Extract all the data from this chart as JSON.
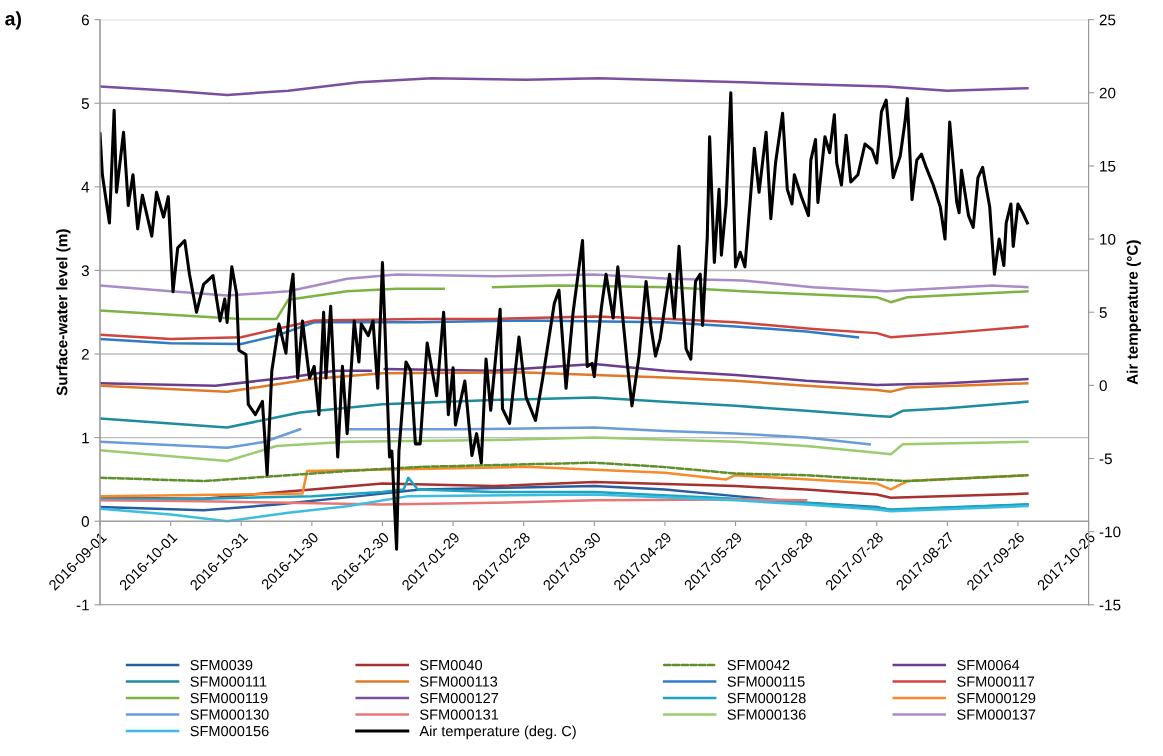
{
  "chart_data": {
    "type": "line",
    "title": "a)",
    "ylabel": "Surface-water level (m)",
    "y2label": "Air temperature (°C)",
    "xlim": [
      "2016-09-01",
      "2017-10-26"
    ],
    "xticks": [
      "2016-09-01",
      "2016-10-01",
      "2016-10-31",
      "2016-11-30",
      "2016-12-30",
      "2017-01-29",
      "2017-02-28",
      "2017-03-30",
      "2017-04-29",
      "2017-05-29",
      "2017-06-28",
      "2017-07-28",
      "2017-08-27",
      "2017-09-26",
      "2017-10-26"
    ],
    "ylim": [
      -1,
      6
    ],
    "yticks": [
      -1,
      0,
      1,
      2,
      3,
      4,
      5,
      6
    ],
    "y2lim": [
      -15,
      25
    ],
    "y2ticks": [
      -15,
      -10,
      -5,
      0,
      5,
      10,
      15,
      20,
      25
    ],
    "grid": "y",
    "legend": "bottom",
    "series": [
      {
        "name": "SFM0039",
        "color": "#2a5d9f",
        "x": [
          "2016-09-01",
          "2016-10-15",
          "2016-11-15",
          "2016-12-20",
          "2017-01-15",
          "2017-03-30",
          "2017-04-29",
          "2017-05-29",
          "2017-06-28",
          "2017-07-28",
          "2017-08-03",
          "2017-09-30"
        ],
        "values": [
          0.17,
          0.13,
          0.2,
          0.3,
          0.38,
          0.42,
          0.38,
          0.3,
          0.22,
          0.17,
          0.13,
          0.2
        ]
      },
      {
        "name": "SFM0040",
        "color": "#a8302f",
        "x": [
          "2016-09-01",
          "2016-10-15",
          "2016-11-30",
          "2016-12-30",
          "2017-02-15",
          "2017-03-30",
          "2017-05-29",
          "2017-06-28",
          "2017-07-28",
          "2017-08-03",
          "2017-09-30"
        ],
        "values": [
          0.28,
          0.27,
          0.38,
          0.45,
          0.42,
          0.47,
          0.42,
          0.38,
          0.32,
          0.28,
          0.33
        ]
      },
      {
        "name": "SFM0042",
        "color": "#5e8f2a",
        "line_style": "dashed",
        "x": [
          "2016-09-01",
          "2016-10-15",
          "2016-11-20",
          "2016-12-15",
          "2017-01-15",
          "2017-02-28",
          "2017-03-30",
          "2017-04-28",
          "2017-05-29",
          "2017-06-28",
          "2017-07-28",
          "2017-08-10",
          "2017-09-30"
        ],
        "values": [
          0.52,
          0.48,
          0.55,
          0.6,
          0.65,
          0.68,
          0.7,
          0.65,
          0.57,
          0.55,
          0.5,
          0.48,
          0.55
        ]
      },
      {
        "name": "SFM0064",
        "color": "#6a3d8f",
        "x": [
          "2016-09-01",
          "2016-10-20",
          "2016-11-20",
          "2016-12-10",
          "2016-12-25",
          "2016-12-28",
          "2016-12-31",
          "2017-02-15",
          "2017-03-30",
          "2017-04-29",
          "2017-05-29",
          "2017-06-28",
          "2017-07-28",
          "2017-08-27",
          "2017-09-30"
        ],
        "values": [
          1.65,
          1.62,
          1.72,
          1.8,
          1.8,
          null,
          1.82,
          1.8,
          1.88,
          1.8,
          1.75,
          1.68,
          1.63,
          1.65,
          1.7
        ]
      },
      {
        "name": "SFM000111",
        "color": "#1c8c9e",
        "x": [
          "2016-09-01",
          "2016-10-25",
          "2016-11-25",
          "2016-12-30",
          "2017-02-15",
          "2017-03-30",
          "2017-04-29",
          "2017-05-29",
          "2017-06-28",
          "2017-07-28",
          "2017-08-03",
          "2017-08-08",
          "2017-08-27",
          "2017-09-30"
        ],
        "values": [
          1.23,
          1.12,
          1.3,
          1.4,
          1.45,
          1.48,
          1.43,
          1.38,
          1.32,
          1.26,
          1.25,
          1.32,
          1.35,
          1.43
        ]
      },
      {
        "name": "SFM000113",
        "color": "#e07a28",
        "x": [
          "2016-09-01",
          "2016-10-25",
          "2016-11-30",
          "2016-12-30",
          "2017-03-01",
          "2017-04-29",
          "2017-05-29",
          "2017-06-28",
          "2017-07-28",
          "2017-08-03",
          "2017-08-10",
          "2017-09-30"
        ],
        "values": [
          1.62,
          1.55,
          1.7,
          1.77,
          1.78,
          1.72,
          1.68,
          1.62,
          1.57,
          1.55,
          1.6,
          1.65
        ]
      },
      {
        "name": "SFM000115",
        "color": "#2f7cc4",
        "x": [
          "2016-09-01",
          "2016-10-01",
          "2016-10-31",
          "2016-11-15",
          "2016-12-01",
          "2017-01-15",
          "2017-03-01",
          "2017-04-29",
          "2017-05-29",
          "2017-06-28",
          "2017-07-20"
        ],
        "values": [
          2.18,
          2.13,
          2.12,
          2.22,
          2.38,
          2.38,
          2.4,
          2.38,
          2.33,
          2.27,
          2.2
        ]
      },
      {
        "name": "SFM000117",
        "color": "#d0443e",
        "x": [
          "2016-09-01",
          "2016-10-01",
          "2016-10-31",
          "2016-11-15",
          "2016-12-01",
          "2017-01-15",
          "2017-02-15",
          "2017-03-30",
          "2017-05-01",
          "2017-05-29",
          "2017-07-01",
          "2017-07-28",
          "2017-08-03",
          "2017-08-27",
          "2017-09-30"
        ],
        "values": [
          2.23,
          2.18,
          2.2,
          2.3,
          2.4,
          2.42,
          2.42,
          2.45,
          2.42,
          2.38,
          2.3,
          2.25,
          2.2,
          2.25,
          2.33
        ]
      },
      {
        "name": "SFM000119",
        "color": "#7cb342",
        "x": [
          "2016-09-01",
          "2016-10-01",
          "2016-10-31",
          "2016-11-15",
          "2016-11-20",
          "2016-12-15",
          "2017-01-05",
          "2017-01-25",
          "2017-02-01",
          "2017-02-15",
          "2017-03-15",
          "2017-05-01",
          "2017-06-01",
          "2017-07-28",
          "2017-08-03",
          "2017-08-10",
          "2017-09-30"
        ],
        "values": [
          2.52,
          2.47,
          2.42,
          2.42,
          2.65,
          2.75,
          2.78,
          2.78,
          null,
          2.8,
          2.82,
          2.8,
          2.75,
          2.68,
          2.62,
          2.68,
          2.75
        ]
      },
      {
        "name": "SFM000127",
        "color": "#7b4fa0",
        "x": [
          "2016-09-01",
          "2016-10-01",
          "2016-10-25",
          "2016-11-20",
          "2016-12-20",
          "2017-01-20",
          "2017-03-01",
          "2017-04-01",
          "2017-06-01",
          "2017-08-01",
          "2017-08-27",
          "2017-09-30"
        ],
        "values": [
          5.2,
          5.15,
          5.1,
          5.15,
          5.25,
          5.3,
          5.28,
          5.3,
          5.25,
          5.2,
          5.15,
          5.18
        ]
      },
      {
        "name": "SFM000128",
        "color": "#1aa3c3",
        "x": [
          "2016-09-01",
          "2016-10-15",
          "2016-11-30",
          "2016-12-30",
          "2017-01-08",
          "2017-01-10",
          "2017-01-14",
          "2017-02-15",
          "2017-03-30",
          "2017-05-29",
          "2017-06-28",
          "2017-07-28",
          "2017-08-03",
          "2017-09-30"
        ],
        "values": [
          0.27,
          0.27,
          0.3,
          0.35,
          0.38,
          0.52,
          0.38,
          0.35,
          0.35,
          0.27,
          0.22,
          0.16,
          0.14,
          0.2
        ]
      },
      {
        "name": "SFM000129",
        "color": "#f58b2b",
        "x": [
          "2016-09-01",
          "2016-11-26",
          "2016-11-28",
          "2017-01-01",
          "2017-03-01",
          "2017-04-29",
          "2017-05-25",
          "2017-05-29",
          "2017-07-28",
          "2017-08-03",
          "2017-08-10",
          "2017-09-30"
        ],
        "values": [
          0.3,
          0.33,
          0.6,
          0.62,
          0.65,
          0.58,
          0.5,
          0.55,
          0.45,
          0.38,
          0.48,
          0.55
        ]
      },
      {
        "name": "SFM000130",
        "color": "#6b9bd8",
        "x": [
          "2016-09-01",
          "2016-10-25",
          "2016-11-10",
          "2016-11-25",
          "2016-11-27",
          "2016-12-15",
          "2017-02-01",
          "2017-03-30",
          "2017-04-29",
          "2017-05-29",
          "2017-06-28",
          "2017-07-25"
        ],
        "values": [
          0.95,
          0.88,
          0.95,
          1.1,
          null,
          1.1,
          1.1,
          1.12,
          1.08,
          1.05,
          1.0,
          0.92
        ]
      },
      {
        "name": "SFM000131",
        "color": "#e57777",
        "x": [
          "2016-09-01",
          "2016-10-15",
          "2016-11-20",
          "2016-12-30",
          "2017-02-15",
          "2017-03-30",
          "2017-05-29",
          "2017-06-28"
        ],
        "values": [
          0.25,
          0.24,
          0.22,
          0.2,
          0.22,
          0.25,
          0.26,
          0.25
        ]
      },
      {
        "name": "SFM000136",
        "color": "#9ccc70",
        "x": [
          "2016-09-01",
          "2016-10-25",
          "2016-11-15",
          "2016-12-15",
          "2017-02-15",
          "2017-03-30",
          "2017-05-29",
          "2017-06-28",
          "2017-07-28",
          "2017-08-03",
          "2017-08-08",
          "2017-09-30"
        ],
        "values": [
          0.85,
          0.72,
          0.9,
          0.95,
          0.97,
          1.0,
          0.95,
          0.9,
          0.82,
          0.8,
          0.92,
          0.95
        ]
      },
      {
        "name": "SFM000137",
        "color": "#a98bc9",
        "x": [
          "2016-09-01",
          "2016-10-01",
          "2016-10-25",
          "2016-11-20",
          "2016-12-15",
          "2017-01-05",
          "2017-02-15",
          "2017-03-30",
          "2017-05-01",
          "2017-06-01",
          "2017-07-01",
          "2017-08-01",
          "2017-09-15",
          "2017-09-30"
        ],
        "values": [
          2.82,
          2.75,
          2.7,
          2.75,
          2.9,
          2.95,
          2.93,
          2.95,
          2.9,
          2.88,
          2.8,
          2.75,
          2.82,
          2.8
        ]
      },
      {
        "name": "SFM000156",
        "color": "#3cbde0",
        "x": [
          "2016-09-01",
          "2016-10-01",
          "2016-10-25",
          "2016-11-20",
          "2016-12-15",
          "2017-01-10",
          "2017-03-30",
          "2017-05-29",
          "2017-06-28",
          "2017-07-28",
          "2017-08-03",
          "2017-09-30"
        ],
        "values": [
          0.15,
          0.08,
          0.0,
          0.1,
          0.18,
          0.3,
          0.32,
          0.25,
          0.2,
          0.14,
          0.12,
          0.18
        ]
      },
      {
        "name": "Air temperature (deg. C)",
        "color": "#000000",
        "axis": "y2",
        "x": [
          "2016-09-01",
          "2016-09-02",
          "2016-09-05",
          "2016-09-07",
          "2016-09-08",
          "2016-09-11",
          "2016-09-13",
          "2016-09-15",
          "2016-09-17",
          "2016-09-19",
          "2016-09-23",
          "2016-09-25",
          "2016-09-28",
          "2016-09-30",
          "2016-10-02",
          "2016-10-04",
          "2016-10-07",
          "2016-10-09",
          "2016-10-12",
          "2016-10-15",
          "2016-10-19",
          "2016-10-22",
          "2016-10-24",
          "2016-10-25",
          "2016-10-27",
          "2016-10-29",
          "2016-10-30",
          "2016-11-02",
          "2016-11-03",
          "2016-11-06",
          "2016-11-09",
          "2016-11-11",
          "2016-11-13",
          "2016-11-16",
          "2016-11-19",
          "2016-11-21",
          "2016-11-22",
          "2016-11-24",
          "2016-11-26",
          "2016-11-29",
          "2016-12-01",
          "2016-12-03",
          "2016-12-05",
          "2016-12-06",
          "2016-12-08",
          "2016-12-11",
          "2016-12-13",
          "2016-12-15",
          "2016-12-18",
          "2016-12-20",
          "2016-12-21",
          "2016-12-24",
          "2016-12-26",
          "2016-12-28",
          "2016-12-30",
          "2016-12-31",
          "2017-01-02",
          "2017-01-03",
          "2017-01-05",
          "2017-01-06",
          "2017-01-09",
          "2017-01-11",
          "2017-01-13",
          "2017-01-15",
          "2017-01-18",
          "2017-01-22",
          "2017-01-25",
          "2017-01-27",
          "2017-01-29",
          "2017-01-30",
          "2017-02-03",
          "2017-02-06",
          "2017-02-08",
          "2017-02-10",
          "2017-02-12",
          "2017-02-14",
          "2017-02-18",
          "2017-02-19",
          "2017-02-22",
          "2017-02-26",
          "2017-03-01",
          "2017-03-05",
          "2017-03-08",
          "2017-03-13",
          "2017-03-15",
          "2017-03-18",
          "2017-03-21",
          "2017-03-25",
          "2017-03-27",
          "2017-03-29",
          "2017-03-30",
          "2017-04-02",
          "2017-04-04",
          "2017-04-07",
          "2017-04-09",
          "2017-04-13",
          "2017-04-15",
          "2017-04-18",
          "2017-04-21",
          "2017-04-23",
          "2017-04-25",
          "2017-04-27",
          "2017-05-01",
          "2017-05-03",
          "2017-05-05",
          "2017-05-08",
          "2017-05-10",
          "2017-05-12",
          "2017-05-14",
          "2017-05-15",
          "2017-05-17",
          "2017-05-18",
          "2017-05-20",
          "2017-05-22",
          "2017-05-23",
          "2017-05-25",
          "2017-05-27",
          "2017-05-29",
          "2017-05-31",
          "2017-06-02",
          "2017-06-06",
          "2017-06-08",
          "2017-06-11",
          "2017-06-13",
          "2017-06-15",
          "2017-06-18",
          "2017-06-20",
          "2017-06-22",
          "2017-06-23",
          "2017-06-26",
          "2017-06-29",
          "2017-06-30",
          "2017-07-02",
          "2017-07-03",
          "2017-07-06",
          "2017-07-08",
          "2017-07-10",
          "2017-07-11",
          "2017-07-13",
          "2017-07-15",
          "2017-07-17",
          "2017-07-20",
          "2017-07-23",
          "2017-07-26",
          "2017-07-28",
          "2017-07-30",
          "2017-08-01",
          "2017-08-02",
          "2017-08-04",
          "2017-08-07",
          "2017-08-09",
          "2017-08-10",
          "2017-08-12",
          "2017-08-14",
          "2017-08-16",
          "2017-08-18",
          "2017-08-21",
          "2017-08-24",
          "2017-08-26",
          "2017-08-28",
          "2017-08-31",
          "2017-09-01",
          "2017-09-02",
          "2017-09-05",
          "2017-09-07",
          "2017-09-09",
          "2017-09-11",
          "2017-09-14",
          "2017-09-16",
          "2017-09-18",
          "2017-09-20",
          "2017-09-21",
          "2017-09-23",
          "2017-09-24",
          "2017-09-26",
          "2017-09-28",
          "2017-09-30"
        ],
        "values": [
          17.2,
          14.4,
          11.1,
          18.8,
          13.2,
          17.3,
          12.3,
          14.4,
          10.7,
          13.0,
          10.2,
          13.2,
          11.5,
          12.9,
          6.4,
          9.4,
          9.9,
          7.6,
          5.0,
          6.9,
          7.5,
          4.4,
          5.9,
          4.3,
          8.1,
          6.3,
          2.4,
          2.1,
          -1.3,
          -2.0,
          -1.1,
          -6.1,
          1.0,
          4.2,
          2.2,
          6.5,
          7.6,
          0.5,
          4.4,
          0.5,
          1.3,
          -2.0,
          5.0,
          0.5,
          5.4,
          -4.9,
          1.3,
          -3.3,
          4.4,
          1.6,
          4.2,
          3.4,
          4.4,
          -0.2,
          8.4,
          4.2,
          -4.9,
          -4.5,
          -11.2,
          -4.5,
          1.6,
          1.0,
          -4.0,
          -4.0,
          2.9,
          -0.7,
          5.0,
          -2.0,
          1.2,
          -2.7,
          0.3,
          -4.8,
          -3.3,
          -5.3,
          1.8,
          -1.7,
          5.2,
          -1.6,
          -2.6,
          3.3,
          -0.8,
          -2.4,
          0.4,
          5.6,
          6.5,
          -0.2,
          5.0,
          9.9,
          1.3,
          1.5,
          0.6,
          5.3,
          7.6,
          4.6,
          8.1,
          1.5,
          -1.4,
          2.0,
          7.1,
          4.1,
          2.0,
          3.2,
          7.6,
          4.6,
          9.5,
          2.5,
          1.8,
          7.1,
          7.6,
          4.1,
          10.1,
          17.0,
          8.4,
          13.4,
          8.9,
          12.4,
          20.0,
          8.1,
          9.1,
          8.1,
          16.2,
          13.2,
          17.3,
          11.4,
          15.2,
          18.6,
          13.4,
          12.4,
          14.4,
          12.9,
          11.6,
          15.4,
          16.8,
          12.5,
          17.0,
          15.9,
          18.5,
          15.2,
          13.7,
          17.1,
          13.9,
          14.4,
          16.5,
          16.1,
          15.2,
          18.7,
          19.5,
          17.7,
          14.2,
          15.7,
          18.0,
          19.6,
          12.7,
          15.4,
          15.8,
          14.9,
          13.7,
          12.2,
          10.0,
          18.0,
          12.5,
          11.8,
          14.7,
          11.6,
          10.8,
          14.2,
          14.9,
          12.2,
          7.6,
          10.0,
          8.2,
          11.1,
          12.4,
          9.5,
          12.4,
          11.8,
          11.1
        ]
      }
    ]
  }
}
